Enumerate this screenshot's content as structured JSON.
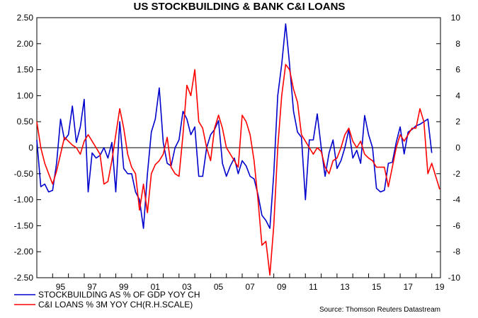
{
  "chart_data": {
    "type": "line",
    "title": "US STOCKBUILDING & BANK C&I LOANS",
    "source": "Source: Thomson Reuters Datastream",
    "x_range": [
      1994.0,
      2019.55
    ],
    "x_tick_labels": [
      "95",
      "97",
      "99",
      "01",
      "03",
      "05",
      "07",
      "09",
      "11",
      "13",
      "15",
      "17",
      "19"
    ],
    "x_tick_values": [
      1995,
      1997,
      1999,
      2001,
      2003,
      2005,
      2007,
      2009,
      2011,
      2013,
      2015,
      2017,
      2019
    ],
    "left_axis": {
      "ylim": [
        -2.5,
        2.5
      ],
      "tick_labels": [
        "2.50",
        "2.00",
        "1.50",
        "1.00",
        "0.50",
        "0",
        "-0.50",
        "-1.00",
        "-1.50",
        "-2.00",
        "-2.50"
      ],
      "tick_values": [
        2.5,
        2.0,
        1.5,
        1.0,
        0.5,
        0,
        -0.5,
        -1.0,
        -1.5,
        -2.0,
        -2.5
      ]
    },
    "right_axis": {
      "ylim": [
        -10,
        10
      ],
      "tick_labels": [
        "10",
        "8",
        "6",
        "4",
        "2",
        "0",
        "-2",
        "-4",
        "-6",
        "-8",
        "-10"
      ],
      "tick_values": [
        10,
        8,
        6,
        4,
        2,
        0,
        -2,
        -4,
        -6,
        -8,
        -10
      ]
    },
    "zero_line": true,
    "grid": false,
    "legend_position": "bottom-left",
    "series": [
      {
        "name": "STOCKBUILDING AS % OF GDP YOY CH",
        "color": "#0000cc",
        "axis": "left",
        "x": [
          1994.0,
          1994.25,
          1994.5,
          1994.75,
          1995.0,
          1995.25,
          1995.5,
          1995.75,
          1996.0,
          1996.25,
          1996.5,
          1996.75,
          1997.0,
          1997.25,
          1997.5,
          1997.75,
          1998.0,
          1998.25,
          1998.5,
          1998.75,
          1999.0,
          1999.25,
          1999.5,
          1999.75,
          2000.0,
          2000.25,
          2000.5,
          2000.75,
          2001.0,
          2001.25,
          2001.5,
          2001.75,
          2002.0,
          2002.25,
          2002.5,
          2002.75,
          2003.0,
          2003.25,
          2003.5,
          2003.75,
          2004.0,
          2004.25,
          2004.5,
          2004.75,
          2005.0,
          2005.25,
          2005.5,
          2005.75,
          2006.0,
          2006.25,
          2006.5,
          2006.75,
          2007.0,
          2007.25,
          2007.5,
          2007.75,
          2008.0,
          2008.25,
          2008.5,
          2008.75,
          2009.0,
          2009.25,
          2009.5,
          2009.75,
          2010.0,
          2010.25,
          2010.5,
          2010.75,
          2011.0,
          2011.25,
          2011.5,
          2011.75,
          2012.0,
          2012.25,
          2012.5,
          2012.75,
          2013.0,
          2013.25,
          2013.5,
          2013.75,
          2014.0,
          2014.25,
          2014.5,
          2014.75,
          2015.0,
          2015.25,
          2015.5,
          2015.75,
          2016.0,
          2016.25,
          2016.5,
          2016.75,
          2017.0,
          2017.25,
          2017.5,
          2017.75,
          2018.0,
          2018.25,
          2018.5,
          2018.75,
          2019.0
        ],
        "values": [
          0.15,
          -0.75,
          -0.7,
          -0.85,
          -0.82,
          -0.3,
          0.55,
          0.15,
          0.25,
          0.8,
          0.1,
          0.4,
          0.93,
          -0.85,
          -0.1,
          -0.2,
          -0.15,
          0.0,
          -0.2,
          0.1,
          -0.85,
          0.5,
          -0.4,
          -0.5,
          -0.5,
          -0.85,
          -1.0,
          -1.55,
          -0.5,
          0.3,
          0.55,
          1.15,
          0.1,
          -0.3,
          -0.35,
          0.0,
          0.15,
          0.7,
          0.55,
          0.25,
          0.4,
          -0.55,
          -0.55,
          0.0,
          0.25,
          0.35,
          0.52,
          -0.3,
          -0.55,
          -0.35,
          -0.2,
          -0.5,
          -0.25,
          -0.35,
          -0.55,
          -0.6,
          -0.9,
          -1.3,
          -1.4,
          -1.55,
          -0.5,
          1.0,
          1.6,
          2.38,
          1.6,
          0.7,
          0.3,
          0.2,
          -1.0,
          0.15,
          0.15,
          0.65,
          0.0,
          -0.55,
          -0.1,
          0.15,
          -0.4,
          -0.25,
          0.0,
          0.35,
          -0.2,
          -0.05,
          -0.3,
          0.62,
          0.25,
          0.0,
          -0.78,
          -0.85,
          -0.82,
          -0.3,
          -0.28,
          0.1,
          0.4,
          -0.12,
          0.3,
          0.35,
          0.42,
          0.45,
          0.5,
          0.55,
          -0.1
        ]
      },
      {
        "name": "C&I LOANS % 3M YOY CH(R.H.SCALE)",
        "color": "#ff0000",
        "axis": "right",
        "x": [
          1994.0,
          1994.25,
          1994.5,
          1994.75,
          1995.0,
          1995.25,
          1995.5,
          1995.75,
          1996.0,
          1996.25,
          1996.5,
          1996.75,
          1997.0,
          1997.25,
          1997.5,
          1997.75,
          1998.0,
          1998.25,
          1998.5,
          1998.75,
          1999.0,
          1999.25,
          1999.5,
          1999.75,
          2000.0,
          2000.25,
          2000.5,
          2000.75,
          2001.0,
          2001.25,
          2001.5,
          2001.75,
          2002.0,
          2002.25,
          2002.5,
          2002.75,
          2003.0,
          2003.25,
          2003.5,
          2003.75,
          2004.0,
          2004.25,
          2004.5,
          2004.75,
          2005.0,
          2005.25,
          2005.5,
          2005.75,
          2006.0,
          2006.25,
          2006.5,
          2006.75,
          2007.0,
          2007.25,
          2007.5,
          2007.75,
          2008.0,
          2008.25,
          2008.5,
          2008.75,
          2009.0,
          2009.25,
          2009.5,
          2009.75,
          2010.0,
          2010.25,
          2010.5,
          2010.75,
          2011.0,
          2011.25,
          2011.5,
          2011.75,
          2012.0,
          2012.25,
          2012.5,
          2012.75,
          2013.0,
          2013.25,
          2013.5,
          2013.75,
          2014.0,
          2014.25,
          2014.5,
          2014.75,
          2015.0,
          2015.25,
          2015.5,
          2015.75,
          2016.0,
          2016.25,
          2016.5,
          2016.75,
          2017.0,
          2017.25,
          2017.5,
          2017.75,
          2018.0,
          2018.25,
          2018.5,
          2018.75,
          2019.0,
          2019.25,
          2019.5
        ],
        "values": [
          2.0,
          0.0,
          -1.2,
          -2.0,
          -2.8,
          -1.8,
          -0.5,
          0.8,
          0.5,
          0.2,
          0.0,
          -0.5,
          0.5,
          1.0,
          0.5,
          0.0,
          -0.5,
          -2.8,
          -2.6,
          -1.0,
          1.0,
          3.0,
          1.5,
          -0.5,
          -1.5,
          -2.0,
          -4.8,
          -2.8,
          -5.0,
          -2.0,
          -1.3,
          -1.0,
          -0.5,
          0.8,
          -1.5,
          -2.0,
          -2.2,
          1.0,
          4.8,
          4.0,
          6.0,
          2.0,
          1.5,
          0.0,
          -1.0,
          1.5,
          2.5,
          1.5,
          0.0,
          -0.5,
          -1.0,
          -1.5,
          2.5,
          2.0,
          1.0,
          -1.0,
          -4.0,
          -7.5,
          -7.2,
          -9.8,
          -6.0,
          0.0,
          4.0,
          6.4,
          6.0,
          4.5,
          3.5,
          1.0,
          0.5,
          0.0,
          -0.5,
          0.0,
          -0.3,
          -1.5,
          -2.0,
          -1.0,
          -0.8,
          0.0,
          1.0,
          1.5,
          0.5,
          0.0,
          0.5,
          -0.5,
          -0.8,
          -1.0,
          -1.5,
          -1.5,
          -1.5,
          -3.0,
          -1.5,
          0.0,
          1.0,
          0.5,
          1.0,
          1.5,
          1.5,
          3.0,
          2.0,
          -2.0,
          -1.2,
          -2.2,
          -3.2
        ]
      }
    ]
  }
}
